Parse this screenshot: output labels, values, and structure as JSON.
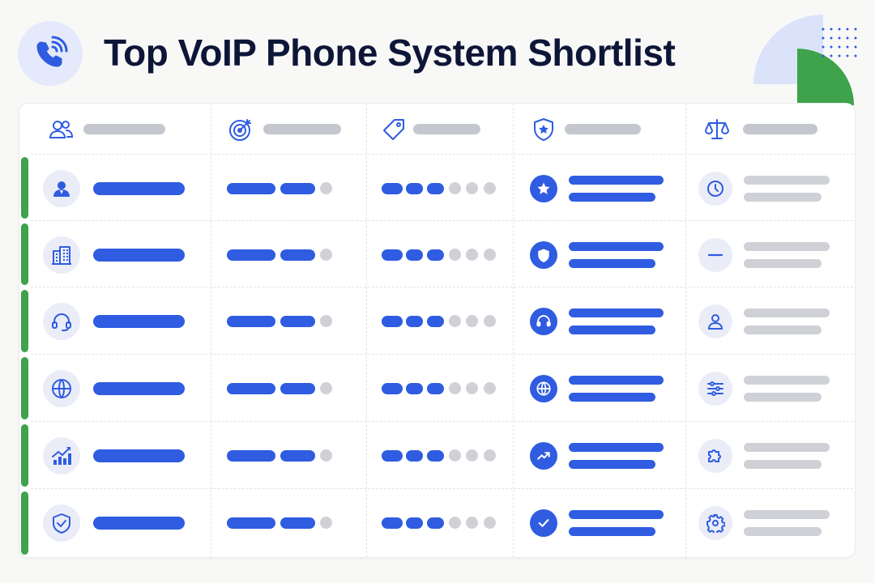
{
  "header": {
    "title": "Top VoIP Phone System Shortlist",
    "phone_icon": "phone-call-icon"
  },
  "columns": [
    {
      "icon": "users-icon"
    },
    {
      "icon": "target-icon"
    },
    {
      "icon": "price-tag-icon"
    },
    {
      "icon": "shield-star-icon"
    },
    {
      "icon": "scale-icon"
    }
  ],
  "rows": [
    {
      "icon": "user-badge-icon",
      "feature_icon": "star-icon",
      "status_icon": "clock-icon",
      "plan_level": 2,
      "rating": 3
    },
    {
      "icon": "building-icon",
      "feature_icon": "shield-icon",
      "status_icon": "minus-icon",
      "plan_level": 2,
      "rating": 3
    },
    {
      "icon": "headset-icon",
      "feature_icon": "headset-icon",
      "status_icon": "user-icon",
      "plan_level": 2,
      "rating": 3
    },
    {
      "icon": "globe-icon",
      "feature_icon": "globe-icon",
      "status_icon": "sliders-icon",
      "plan_level": 2,
      "rating": 3
    },
    {
      "icon": "growth-chart-icon",
      "feature_icon": "trend-up-icon",
      "status_icon": "puzzle-icon",
      "plan_level": 2,
      "rating": 3
    },
    {
      "icon": "shield-check-icon",
      "feature_icon": "checkmark-icon",
      "status_icon": "gear-icon",
      "plan_level": 2,
      "rating": 3
    }
  ],
  "colors": {
    "accent_blue": "#2f5ce0",
    "accent_green": "#3ea34b",
    "placeholder_grey": "#cfd1d7",
    "title_navy": "#0e1638"
  }
}
